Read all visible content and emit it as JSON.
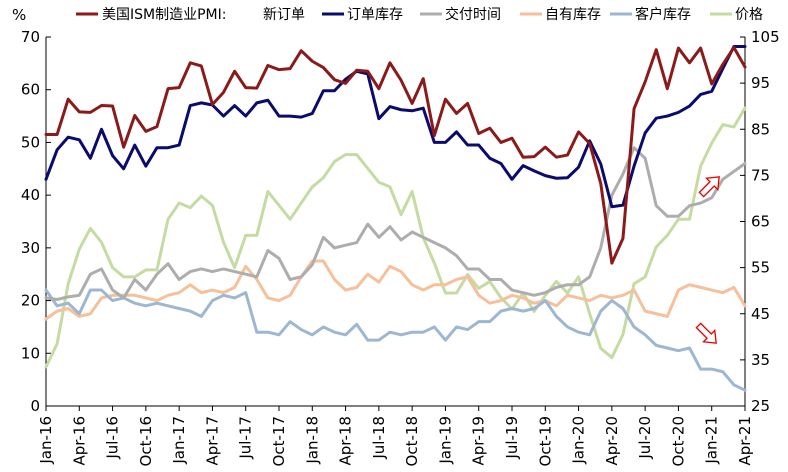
{
  "chart_data": {
    "type": "line",
    "y_unit_label": "%",
    "legend_prefix": "美国ISM制造业PMI:",
    "ylim_left": [
      0,
      70
    ],
    "ylim_right": [
      25,
      105
    ],
    "left_ticks": [
      "0",
      "10",
      "20",
      "30",
      "40",
      "50",
      "60",
      "70"
    ],
    "right_ticks": [
      "25",
      "35",
      "45",
      "55",
      "65",
      "75",
      "85",
      "95",
      "105"
    ],
    "x_tick_labels": [
      "Jan-16",
      "Apr-16",
      "Jul-16",
      "Oct-16",
      "Jan-17",
      "Apr-17",
      "Jul-17",
      "Oct-17",
      "Jan-18",
      "Apr-18",
      "Jul-18",
      "Oct-18",
      "Jan-19",
      "Apr-19",
      "Jul-19",
      "Oct-19",
      "Jan-20",
      "Apr-20",
      "Jul-20",
      "Oct-20",
      "Jan-21",
      "Apr-21"
    ],
    "series": [
      {
        "name": "新订单",
        "axis": "left",
        "color": "#8B1A1A",
        "width": 3,
        "values": [
          51.5,
          51.5,
          58.2,
          55.8,
          55.7,
          57.0,
          56.9,
          49.1,
          55.1,
          52.1,
          53.0,
          60.2,
          60.4,
          65.1,
          64.5,
          57.2,
          59.5,
          63.5,
          60.4,
          60.3,
          64.6,
          63.8,
          64.0,
          67.4,
          65.4,
          64.2,
          61.9,
          61.2,
          63.7,
          63.5,
          60.2,
          65.1,
          61.8,
          57.4,
          62.1,
          51.3,
          58.2,
          55.5,
          57.4,
          51.7,
          52.7,
          50.0,
          50.8,
          47.2,
          47.3,
          49.1,
          47.2,
          47.6,
          52.0,
          49.8,
          42.2,
          27.1,
          31.8,
          56.4,
          61.5,
          67.6,
          60.2,
          67.9,
          65.1,
          67.9,
          61.1,
          64.8,
          68.0,
          64.3
        ]
      },
      {
        "name": "订单库存",
        "axis": "left",
        "color": "#0B0B6E",
        "width": 3,
        "values": [
          43.0,
          48.6,
          51.0,
          50.5,
          47.0,
          52.5,
          47.5,
          45.0,
          49.5,
          45.5,
          49.0,
          49.0,
          49.5,
          57.0,
          57.5,
          57.1,
          55.0,
          57.0,
          55.0,
          57.5,
          58.0,
          55.0,
          55.0,
          54.8,
          55.5,
          59.8,
          59.8,
          62.0,
          63.5,
          63.0,
          54.5,
          56.8,
          56.2,
          56.0,
          56.5,
          50.0,
          50.0,
          52.0,
          49.5,
          49.5,
          47.0,
          46.0,
          43.0,
          45.6,
          44.6,
          43.7,
          43.2,
          43.3,
          45.3,
          50.3,
          45.9,
          37.8,
          38.1,
          45.5,
          51.8,
          54.6,
          55.0,
          55.7,
          56.9,
          59.1,
          59.7,
          64.0,
          68.2,
          68.2
        ]
      },
      {
        "name": "交付时间",
        "axis": "left",
        "color": "#ADADAD",
        "width": 3,
        "values": [
          20.5,
          20.2,
          20.7,
          21.0,
          25.0,
          26.0,
          22.0,
          20.5,
          24.0,
          22.0,
          25.0,
          27.0,
          24.0,
          25.5,
          26.0,
          25.5,
          26.0,
          25.5,
          25.0,
          24.5,
          29.5,
          28.0,
          24.0,
          24.5,
          26.8,
          32.0,
          30.0,
          30.5,
          31.0,
          34.5,
          32.0,
          34.0,
          31.5,
          33.0,
          32.0,
          31.0,
          30.0,
          28.5,
          26.0,
          26.0,
          24.0,
          24.0,
          22.0,
          21.5,
          21.0,
          21.5,
          22.5,
          23.0,
          23.0,
          24.5,
          30.0,
          40.0,
          44.0,
          49.0,
          47.0,
          38.0,
          36.0,
          36.0,
          38.0,
          38.5,
          39.5,
          43.0,
          44.5,
          46.0
        ]
      },
      {
        "name": "自有库存",
        "axis": "left",
        "color": "#F5C09A",
        "width": 3,
        "values": [
          16.5,
          18.0,
          18.5,
          17.0,
          17.5,
          20.5,
          21.0,
          21.0,
          21.0,
          20.5,
          20.0,
          21.0,
          21.5,
          23.0,
          21.5,
          22.0,
          21.5,
          22.5,
          26.5,
          24.0,
          20.5,
          20.0,
          21.0,
          24.5,
          27.5,
          27.5,
          24.0,
          22.0,
          22.5,
          25.0,
          23.5,
          26.5,
          25.5,
          23.0,
          22.0,
          23.0,
          23.0,
          24.0,
          24.5,
          21.0,
          19.5,
          20.0,
          21.0,
          20.5,
          19.5,
          20.0,
          19.0,
          21.0,
          20.5,
          20.0,
          21.0,
          20.5,
          21.0,
          22.0,
          18.0,
          17.5,
          17.0,
          22.0,
          23.0,
          22.5,
          22.0,
          21.5,
          22.5,
          19.0
        ]
      },
      {
        "name": "客户库存",
        "axis": "left",
        "color": "#9DB6D1",
        "width": 3,
        "values": [
          22.0,
          19.0,
          19.5,
          17.5,
          22.0,
          22.0,
          20.0,
          20.5,
          19.5,
          19.0,
          19.5,
          19.0,
          18.5,
          18.0,
          17.0,
          20.0,
          21.0,
          20.5,
          21.5,
          14.0,
          14.0,
          13.5,
          16.0,
          14.5,
          13.5,
          15.0,
          14.0,
          13.5,
          15.5,
          12.5,
          12.5,
          14.0,
          13.5,
          14.0,
          14.0,
          15.0,
          12.5,
          15.0,
          14.5,
          16.0,
          16.0,
          18.0,
          18.5,
          18.0,
          18.5,
          20.0,
          17.0,
          15.0,
          14.0,
          13.5,
          18.0,
          20.0,
          18.5,
          15.0,
          13.5,
          11.5,
          11.0,
          10.5,
          11.0,
          7.0,
          7.0,
          6.5,
          4.0,
          3.0
        ]
      },
      {
        "name": "价格",
        "axis": "right",
        "color": "#C5DBA2",
        "width": 3,
        "values": [
          33.5,
          38.5,
          51.5,
          59.0,
          63.5,
          60.5,
          55.0,
          53.0,
          53.0,
          54.5,
          54.5,
          65.5,
          69.0,
          68.0,
          70.5,
          68.5,
          60.5,
          55.0,
          62.0,
          62.0,
          71.5,
          68.5,
          65.5,
          69.0,
          72.5,
          74.5,
          78.0,
          79.5,
          79.5,
          76.5,
          73.5,
          72.5,
          66.5,
          71.5,
          61.5,
          56.0,
          49.5,
          49.5,
          53.5,
          50.5,
          52.0,
          48.5,
          46.0,
          49.5,
          45.5,
          49.0,
          52.0,
          49.5,
          53.0,
          45.0,
          37.5,
          35.5,
          40.5,
          51.5,
          53.0,
          59.5,
          62.0,
          65.5,
          65.5,
          77.0,
          82.0,
          86.0,
          85.5,
          89.6
        ]
      }
    ]
  },
  "annotations": [
    {
      "name": "up-arrow",
      "color": "#E60000",
      "direction": "up"
    },
    {
      "name": "down-arrow",
      "color": "#E60000",
      "direction": "down"
    }
  ]
}
